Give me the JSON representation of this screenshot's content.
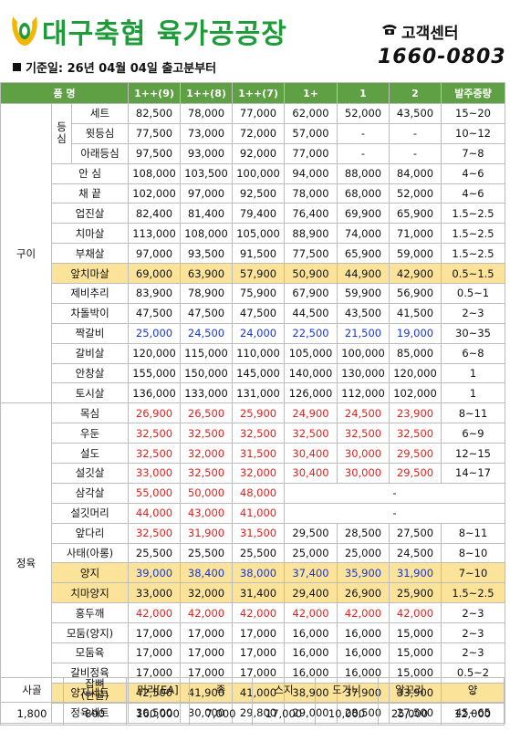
{
  "header": {
    "logo_text": "대구축협 육가공공장",
    "cs_label": "고객센터",
    "phone": "1660-0803",
    "basis": "기준일: 26년 04월 04일 출고분부터"
  },
  "table": {
    "columns": [
      "품 명",
      "1++(9)",
      "1++(8)",
      "1++(7)",
      "1+",
      "1",
      "2",
      "발주중량"
    ],
    "categories": {
      "gui": "구이",
      "jeongyuk": "정육"
    },
    "sub_group": "등심",
    "rows": [
      {
        "name": "세트",
        "v": [
          "82,500",
          "78,000",
          "77,000",
          "62,000",
          "52,000",
          "43,500",
          "15~20"
        ]
      },
      {
        "name": "윗등심",
        "v": [
          "77,500",
          "73,000",
          "72,000",
          "57,000",
          "-",
          "-",
          "10~12"
        ]
      },
      {
        "name": "아래등심",
        "v": [
          "97,500",
          "93,000",
          "92,000",
          "77,000",
          "-",
          "-",
          "7~8"
        ]
      },
      {
        "name": "안 심",
        "v": [
          "108,000",
          "103,500",
          "100,000",
          "94,000",
          "88,000",
          "84,000",
          "4~6"
        ]
      },
      {
        "name": "채 끝",
        "v": [
          "102,000",
          "97,000",
          "92,500",
          "78,000",
          "68,000",
          "52,000",
          "4~6"
        ]
      },
      {
        "name": "업진살",
        "v": [
          "82,400",
          "81,400",
          "79,400",
          "76,400",
          "69,900",
          "65,900",
          "1.5~2.5"
        ]
      },
      {
        "name": "치마살",
        "v": [
          "113,000",
          "108,000",
          "105,000",
          "88,900",
          "74,000",
          "71,000",
          "1.5~2.5"
        ]
      },
      {
        "name": "부채살",
        "v": [
          "97,000",
          "93,500",
          "91,500",
          "77,500",
          "65,900",
          "59,000",
          "1.5~2.5"
        ]
      },
      {
        "name": "앞치마살",
        "v": [
          "69,000",
          "63,900",
          "57,900",
          "50,900",
          "44,900",
          "42,900",
          "0.5~1.5"
        ]
      },
      {
        "name": "제비추리",
        "v": [
          "83,900",
          "78,900",
          "75,900",
          "67,900",
          "59,900",
          "56,900",
          "0.5~1"
        ]
      },
      {
        "name": "차돌박이",
        "v": [
          "47,500",
          "47,500",
          "47,500",
          "44,500",
          "43,500",
          "41,500",
          "2~3"
        ]
      },
      {
        "name": "짝갈비",
        "v": [
          "25,000",
          "24,500",
          "24,000",
          "22,500",
          "21,500",
          "19,000",
          "30~35"
        ]
      },
      {
        "name": "갈비살",
        "v": [
          "120,000",
          "115,000",
          "110,000",
          "105,000",
          "100,000",
          "85,000",
          "6~8"
        ]
      },
      {
        "name": "안창살",
        "v": [
          "155,000",
          "150,000",
          "145,000",
          "140,000",
          "130,000",
          "120,000",
          "1"
        ]
      },
      {
        "name": "토시살",
        "v": [
          "136,000",
          "133,000",
          "131,000",
          "126,000",
          "112,000",
          "102,000",
          "1"
        ]
      },
      {
        "name": "목심",
        "v": [
          "26,900",
          "26,500",
          "25,900",
          "24,900",
          "24,500",
          "23,900",
          "8~11"
        ]
      },
      {
        "name": "우둔",
        "v": [
          "32,500",
          "32,500",
          "32,500",
          "32,500",
          "32,500",
          "32,500",
          "6~9"
        ]
      },
      {
        "name": "설도",
        "v": [
          "32,500",
          "32,000",
          "31,500",
          "30,400",
          "30,000",
          "29,500",
          "12~15"
        ]
      },
      {
        "name": "설깃살",
        "v": [
          "33,000",
          "32,500",
          "32,000",
          "30,400",
          "30,000",
          "29,500",
          "14~17"
        ]
      },
      {
        "name": "삼각살",
        "v": [
          "55,000",
          "50,000",
          "48,000"
        ],
        "merged": "-"
      },
      {
        "name": "설깃머리",
        "v": [
          "44,000",
          "43,000",
          "41,000"
        ],
        "merged": "-"
      },
      {
        "name": "앞다리",
        "v": [
          "32,500",
          "31,900",
          "31,500",
          "29,500",
          "28,500",
          "27,500",
          "8~11"
        ]
      },
      {
        "name": "사태(아롱)",
        "v": [
          "25,500",
          "25,500",
          "25,500",
          "25,000",
          "25,000",
          "24,500",
          "8~10"
        ]
      },
      {
        "name": "양지",
        "v": [
          "39,000",
          "38,400",
          "38,000",
          "37,400",
          "35,900",
          "31,900",
          "7~10"
        ]
      },
      {
        "name": "치마양지",
        "v": [
          "33,000",
          "32,000",
          "31,400",
          "29,400",
          "26,900",
          "25,900",
          "1.5~2.5"
        ]
      },
      {
        "name": "홍두깨",
        "v": [
          "42,000",
          "42,000",
          "42,000",
          "42,000",
          "42,000",
          "42,000",
          "2~3"
        ]
      },
      {
        "name": "모둠(양지)",
        "v": [
          "17,000",
          "17,000",
          "17,000",
          "16,000",
          "16,000",
          "15,000",
          "2~3"
        ]
      },
      {
        "name": "모둠육",
        "v": [
          "17,000",
          "17,000",
          "17,000",
          "16,000",
          "16,000",
          "15,000",
          "2~3"
        ]
      },
      {
        "name": "갈비정육",
        "v": [
          "17,000",
          "17,000",
          "17,000",
          "16,000",
          "16,000",
          "15,000",
          "0.5~2"
        ]
      },
      {
        "name": "양지세트",
        "v": [
          "42,500",
          "41,900",
          "41,000",
          "38,900",
          "37,900",
          "33,900",
          "-"
        ]
      },
      {
        "name": "정육세트",
        "v": [
          "30,500",
          "30,000",
          "29,800",
          "29,000",
          "28,500",
          "27,500",
          "45~65"
        ]
      }
    ]
  },
  "bottom": {
    "headers": [
      "사골",
      "잡뼈\n(반골)",
      "머리[EA]",
      "족",
      "스지",
      "도가니",
      "알꼬리",
      "양"
    ],
    "values": [
      "1,800",
      "800",
      "160,000",
      "7,000",
      "17,000",
      "10,000",
      "25,000",
      "12,000"
    ]
  },
  "colors": {
    "header_green": "#5ea043",
    "logo_green": "#1e9c3a",
    "highlight": "#fbe39a",
    "red": "#e0211d",
    "blue": "#1637d6"
  }
}
